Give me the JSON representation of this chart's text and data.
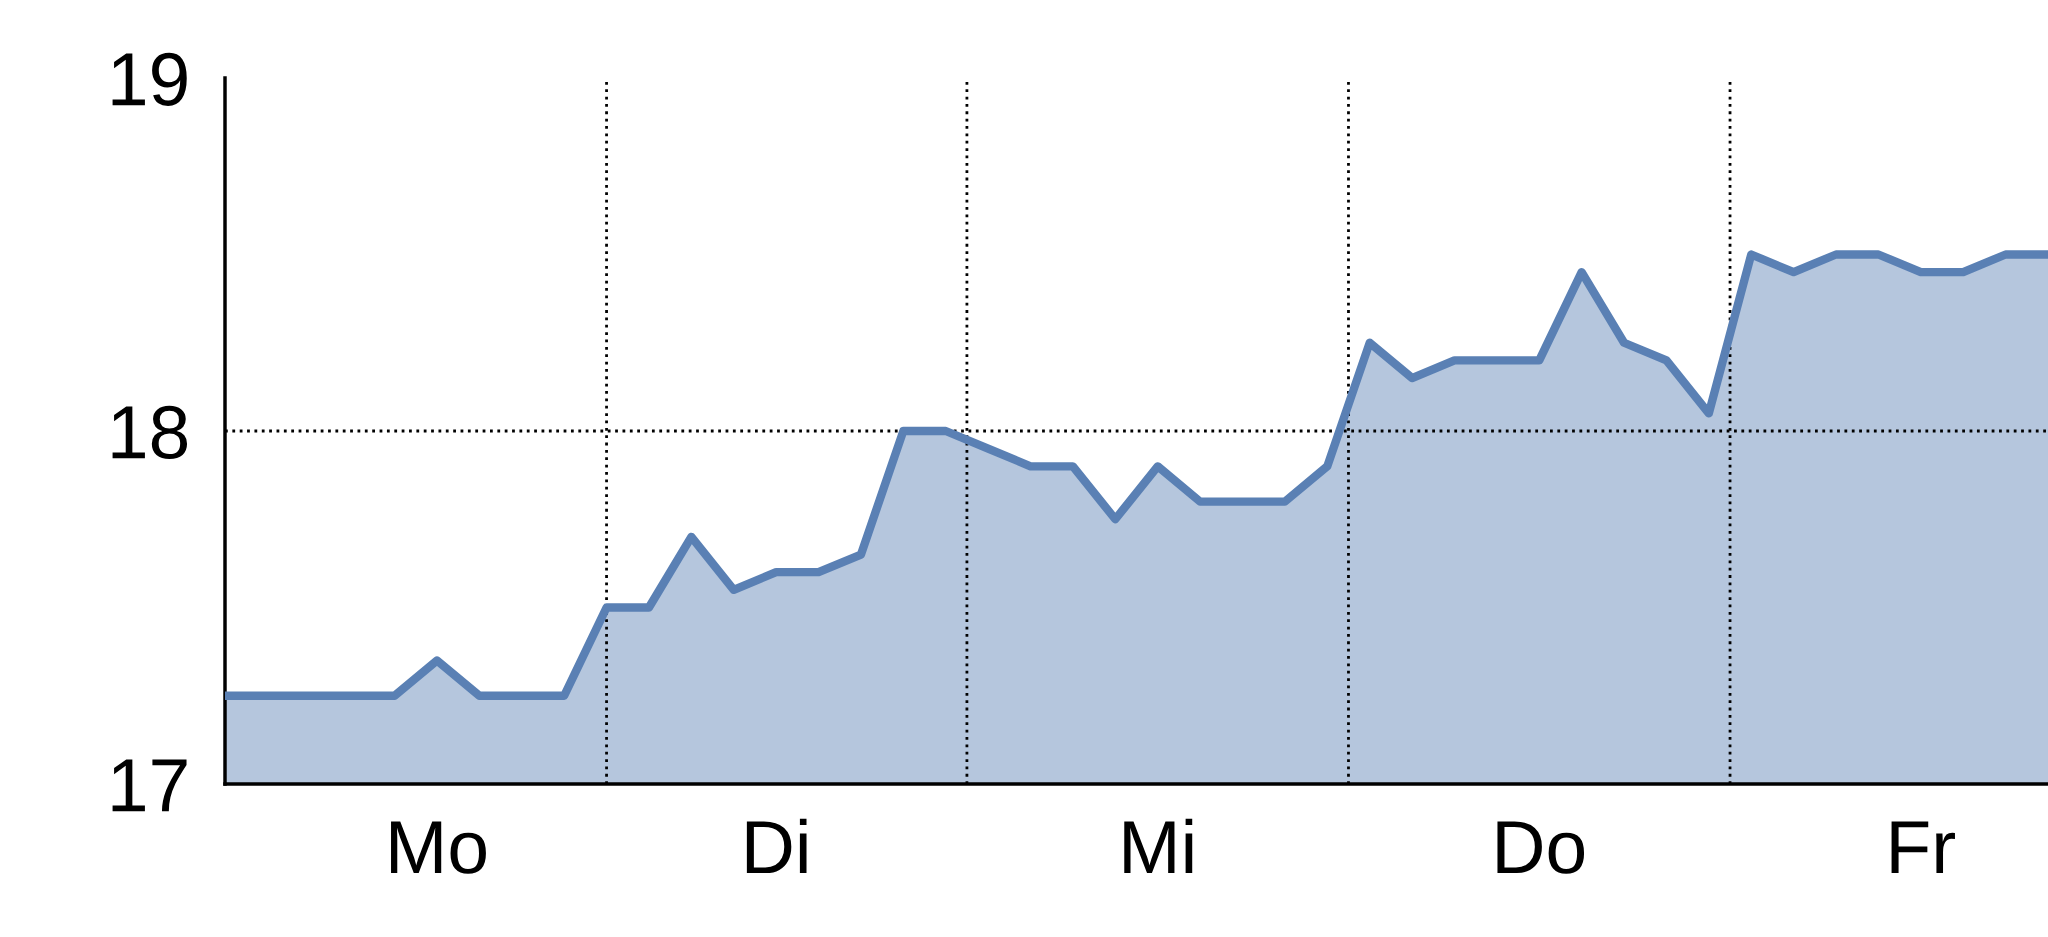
{
  "chart_data": {
    "type": "area",
    "categories": [
      null,
      null,
      null,
      null,
      null,
      "Mo",
      null,
      null,
      null,
      null,
      null,
      null,
      null,
      "Di",
      null,
      null,
      null,
      null,
      null,
      null,
      null,
      null,
      "Mi",
      null,
      null,
      null,
      null,
      null,
      null,
      null,
      null,
      "Do",
      null,
      null,
      null,
      null,
      null,
      null,
      null,
      null,
      "Fr",
      null,
      null,
      null
    ],
    "series": [
      {
        "color": "#5a80b4",
        "values": [
          17.25,
          17.25,
          17.25,
          17.25,
          17.25,
          17.35,
          17.25,
          17.25,
          17.25,
          17.5,
          17.5,
          17.7,
          17.55,
          17.6,
          17.6,
          17.65,
          18.0,
          18.0,
          17.95,
          17.9,
          17.9,
          17.75,
          17.9,
          17.8,
          17.8,
          17.8,
          17.9,
          18.25,
          18.15,
          18.2,
          18.2,
          18.2,
          18.45,
          18.25,
          18.2,
          18.05,
          18.5,
          18.45,
          18.5,
          18.5,
          18.45,
          18.45,
          18.5,
          18.5
        ]
      }
    ],
    "ylim": [
      17,
      19
    ],
    "yticks": [
      17,
      18,
      19
    ],
    "grid": "x",
    "legend": false,
    "marker": "none",
    "line_style": "solid",
    "ref_lines": [
      {
        "axis": "y",
        "value": 18,
        "color": "#000000",
        "line_style": "dotted"
      }
    ]
  }
}
